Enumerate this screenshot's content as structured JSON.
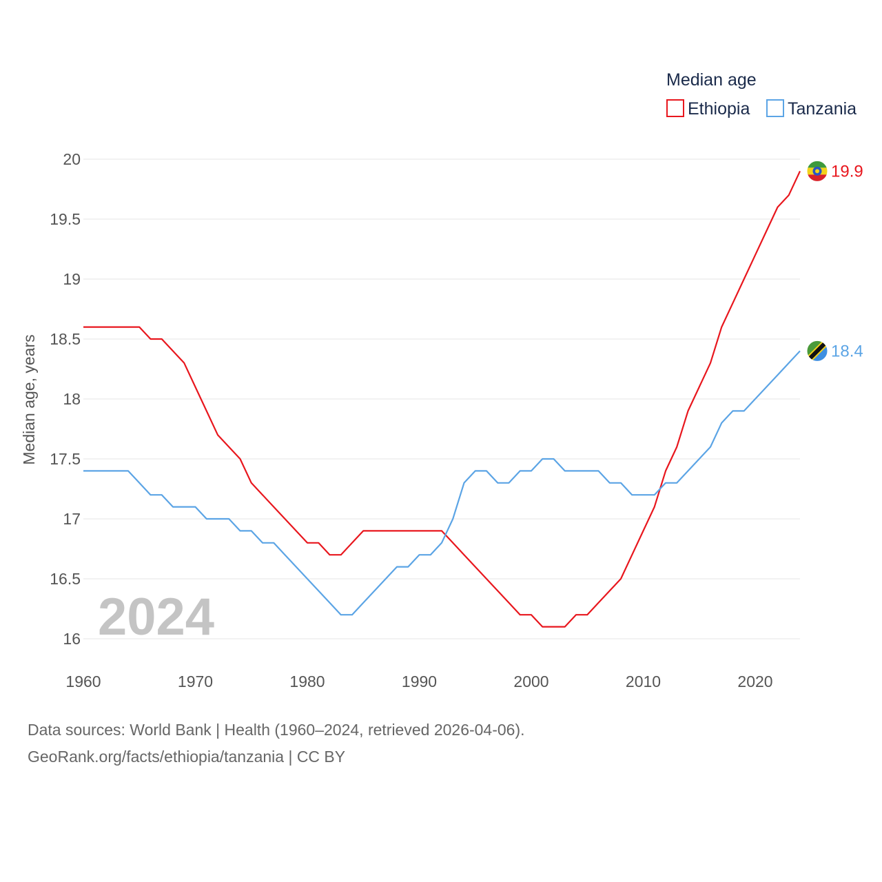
{
  "chart_data": {
    "type": "line",
    "legend_title": "Median age",
    "ylabel": "Median age, years",
    "xlabel": "",
    "ylim": [
      16,
      20
    ],
    "yticks": [
      16,
      16.5,
      17,
      17.5,
      18,
      18.5,
      19,
      19.5,
      20
    ],
    "ytick_labels": [
      "16",
      "16.5",
      "17",
      "17.5",
      "18",
      "18.5",
      "19",
      "19.5",
      "20"
    ],
    "xlim": [
      1960,
      2024
    ],
    "xticks": [
      1960,
      1970,
      1980,
      1990,
      2000,
      2010,
      2020
    ],
    "xtick_labels": [
      "1960",
      "1970",
      "1980",
      "1990",
      "2000",
      "2010",
      "2020"
    ],
    "legend_position": "top-right",
    "grid": true,
    "year_label": "2024",
    "x": [
      1960,
      1961,
      1962,
      1963,
      1964,
      1965,
      1966,
      1967,
      1968,
      1969,
      1970,
      1971,
      1972,
      1973,
      1974,
      1975,
      1976,
      1977,
      1978,
      1979,
      1980,
      1981,
      1982,
      1983,
      1984,
      1985,
      1986,
      1987,
      1988,
      1989,
      1990,
      1991,
      1992,
      1993,
      1994,
      1995,
      1996,
      1997,
      1998,
      1999,
      2000,
      2001,
      2002,
      2003,
      2004,
      2005,
      2006,
      2007,
      2008,
      2009,
      2010,
      2011,
      2012,
      2013,
      2014,
      2015,
      2016,
      2017,
      2018,
      2019,
      2020,
      2021,
      2022,
      2023,
      2024
    ],
    "series": [
      {
        "name": "Ethiopia",
        "color": "#e8161d",
        "end_label": "19.9",
        "flag": "ethiopia-flag-icon",
        "values": [
          18.6,
          18.6,
          18.6,
          18.6,
          18.6,
          18.6,
          18.5,
          18.5,
          18.4,
          18.3,
          18.1,
          17.9,
          17.7,
          17.6,
          17.5,
          17.3,
          17.2,
          17.1,
          17.0,
          16.9,
          16.8,
          16.8,
          16.7,
          16.7,
          16.8,
          16.9,
          16.9,
          16.9,
          16.9,
          16.9,
          16.9,
          16.9,
          16.9,
          16.8,
          16.7,
          16.6,
          16.5,
          16.4,
          16.3,
          16.2,
          16.2,
          16.1,
          16.1,
          16.1,
          16.2,
          16.2,
          16.3,
          16.4,
          16.5,
          16.7,
          16.9,
          17.1,
          17.4,
          17.6,
          17.9,
          18.1,
          18.3,
          18.6,
          18.8,
          19.0,
          19.2,
          19.4,
          19.6,
          19.7,
          19.9
        ]
      },
      {
        "name": "Tanzania",
        "color": "#5ba4e5",
        "end_label": "18.4",
        "flag": "tanzania-flag-icon",
        "values": [
          17.4,
          17.4,
          17.4,
          17.4,
          17.4,
          17.3,
          17.2,
          17.2,
          17.1,
          17.1,
          17.1,
          17.0,
          17.0,
          17.0,
          16.9,
          16.9,
          16.8,
          16.8,
          16.7,
          16.6,
          16.5,
          16.4,
          16.3,
          16.2,
          16.2,
          16.3,
          16.4,
          16.5,
          16.6,
          16.6,
          16.7,
          16.7,
          16.8,
          17.0,
          17.3,
          17.4,
          17.4,
          17.3,
          17.3,
          17.4,
          17.4,
          17.5,
          17.5,
          17.4,
          17.4,
          17.4,
          17.4,
          17.3,
          17.3,
          17.2,
          17.2,
          17.2,
          17.3,
          17.3,
          17.4,
          17.5,
          17.6,
          17.8,
          17.9,
          17.9,
          18.0,
          18.1,
          18.2,
          18.3,
          18.4
        ]
      }
    ]
  },
  "footer": {
    "source": "Data sources: World Bank | Health (1960–2024, retrieved 2026-04-06).",
    "url": "GeoRank.org/facts/ethiopia/tanzania | CC BY"
  }
}
